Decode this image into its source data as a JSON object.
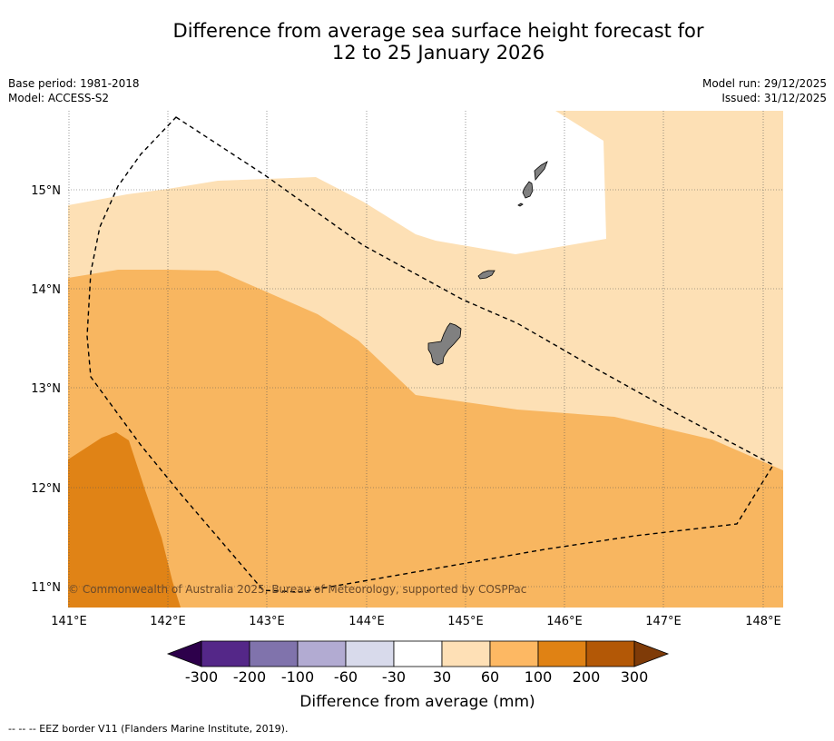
{
  "title": {
    "line1": "Difference from average sea surface height forecast for",
    "line2": "12 to 25 January 2026"
  },
  "meta_left": {
    "base_period": "Base period: 1981-2018",
    "model": "Model: ACCESS-S2"
  },
  "meta_right": {
    "model_run": "Model run: 29/12/2025",
    "issued": "Issued: 31/12/2025"
  },
  "map": {
    "lat_labels": [
      "15°N",
      "14°N",
      "13°N",
      "12°N",
      "11°N"
    ],
    "lon_labels": [
      "141°E",
      "142°E",
      "143°E",
      "144°E",
      "145°E",
      "146°E",
      "147°E",
      "148°E"
    ],
    "copyright": "© Commonwealth of Australia 2025, Bureau of Meteorology, supported by COSPPac",
    "colors": {
      "band_30_60": "#fde0b5",
      "band_60_100": "#f8b660",
      "band_100_200": "#e08316",
      "land": "#808080"
    }
  },
  "colorbar": {
    "ticks": [
      "-300",
      "-200",
      "-100",
      "-60",
      "-30",
      "30",
      "60",
      "100",
      "200",
      "300"
    ],
    "colors": [
      "#2d004b",
      "#542788",
      "#8073ac",
      "#b2abd2",
      "#d8daeb",
      "#ffffff",
      "#fee0b6",
      "#fdb863",
      "#e08214",
      "#b35806",
      "#7f3b08"
    ],
    "label": "Difference from average (mm)"
  },
  "footer": {
    "legend": "-- -- -- EEZ border V11 (Flanders Marine Institute, 2019)."
  }
}
